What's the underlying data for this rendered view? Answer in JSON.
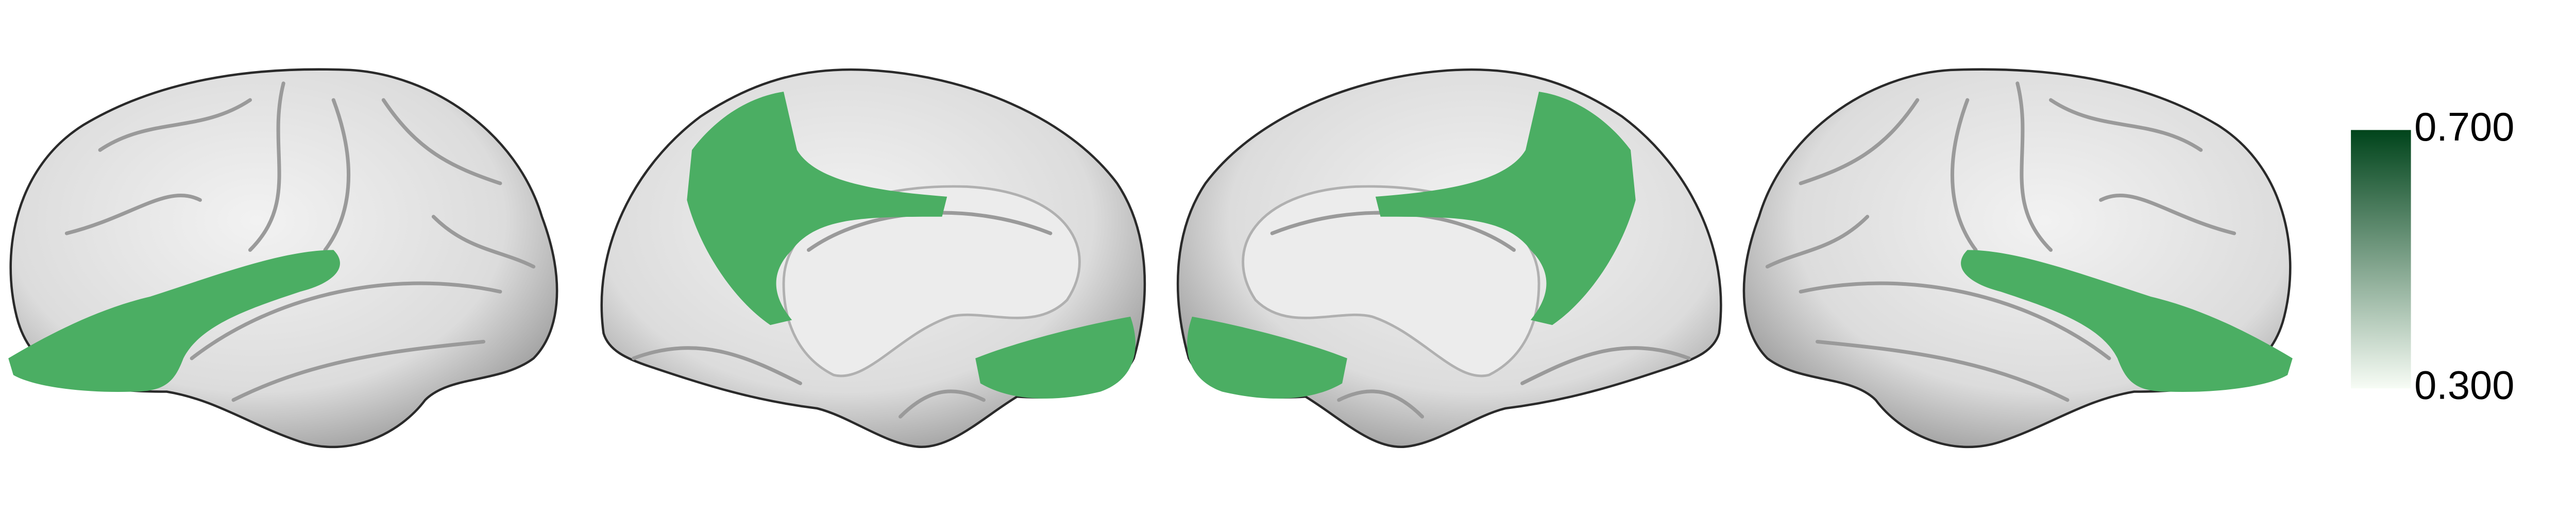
{
  "colorbar": {
    "max_label": "0.700",
    "min_label": "0.300",
    "top_color": "#00441b",
    "bottom_color": "#f7fcf5"
  },
  "region_color": "#4bae63"
}
